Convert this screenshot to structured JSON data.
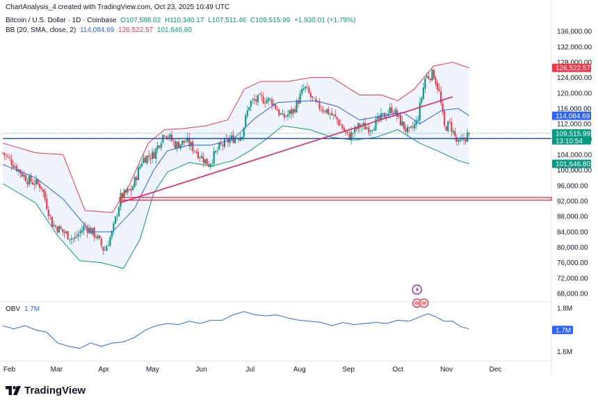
{
  "credit": "ChartAnalysis_4 created with TradingView.com, Oct 23, 2025 10:49 UTC",
  "legend": {
    "symbol": "Bitcoin / U.S. Dollar · 1D · Coinbase",
    "open": "O107,588.02",
    "high": "H110,340.17",
    "low": "L107,511.46",
    "close": "C109,515.99",
    "change": "+1,930.01 (+1.79%)",
    "bb_title": "BB (20, SMA, close, 2)",
    "bb_basis": "114,084.69",
    "bb_upper": "126,522.57",
    "bb_lower": "101,646.80"
  },
  "obv": {
    "title": "OBV",
    "value": "1.7M"
  },
  "branding": {
    "logo_text": "TradingView"
  },
  "colors": {
    "up": "#089981",
    "down": "#f23645",
    "bb_basis": "#2962ff",
    "bb_upper": "#f23645",
    "bb_lower": "#089981",
    "trendline": "#e91e63",
    "hline": "#0d47a1",
    "support": "#f23645",
    "obv": "#2962ff"
  },
  "chart_data": [
    {
      "type": "candlestick",
      "title": "Bitcoin / U.S. Dollar · 1D · Coinbase",
      "x_ticks": [
        "Feb",
        "Mar",
        "Apr",
        "May",
        "Jun",
        "Jul",
        "Aug",
        "Sep",
        "Oct",
        "Nov",
        "Dec"
      ],
      "y_ticks": [
        "136,000.00",
        "132,000.00",
        "128,000.00",
        "124,000.00",
        "120,000.00",
        "116,000.00",
        "112,000.00",
        "108,000.00",
        "104,000.00",
        "100,000.00",
        "96,000.00",
        "92,000.00",
        "88,000.00",
        "84,000.00",
        "80,000.00",
        "76,000.00",
        "72,000.00",
        "68,000.00"
      ],
      "ylim": [
        66000,
        138000
      ],
      "price_labels": [
        {
          "text": "126,522.57",
          "value": 126522.57,
          "color": "#f23645"
        },
        {
          "text": "114,084.69",
          "value": 114084.69,
          "color": "#2962ff"
        },
        {
          "text": "109,515.99",
          "value": 109515.99,
          "color": "#089981",
          "countdown": "13:10:54"
        },
        {
          "text": "101,646.80",
          "value": 101646.8,
          "color": "#089981"
        }
      ],
      "horizontal_line": 108200,
      "support_zone": [
        92200,
        92900
      ],
      "trendline": [
        {
          "x": 0.213,
          "y": 91500
        },
        {
          "x": 0.82,
          "y": 119000
        }
      ],
      "close_series": [
        {
          "t": 0.0,
          "close": 104500
        },
        {
          "t": 0.02,
          "close": 101500
        },
        {
          "t": 0.045,
          "close": 97500
        },
        {
          "t": 0.07,
          "close": 96000
        },
        {
          "t": 0.09,
          "close": 86000
        },
        {
          "t": 0.11,
          "close": 84000
        },
        {
          "t": 0.13,
          "close": 82000
        },
        {
          "t": 0.15,
          "close": 85500
        },
        {
          "t": 0.17,
          "close": 83000
        },
        {
          "t": 0.185,
          "close": 79000
        },
        {
          "t": 0.2,
          "close": 84000
        },
        {
          "t": 0.215,
          "close": 93000
        },
        {
          "t": 0.235,
          "close": 95000
        },
        {
          "t": 0.255,
          "close": 103000
        },
        {
          "t": 0.275,
          "close": 104000
        },
        {
          "t": 0.295,
          "close": 110000
        },
        {
          "t": 0.315,
          "close": 106500
        },
        {
          "t": 0.335,
          "close": 107500
        },
        {
          "t": 0.355,
          "close": 104500
        },
        {
          "t": 0.375,
          "close": 101500
        },
        {
          "t": 0.395,
          "close": 106000
        },
        {
          "t": 0.415,
          "close": 108000
        },
        {
          "t": 0.435,
          "close": 109000
        },
        {
          "t": 0.45,
          "close": 117500
        },
        {
          "t": 0.47,
          "close": 118500
        },
        {
          "t": 0.49,
          "close": 118000
        },
        {
          "t": 0.51,
          "close": 113500
        },
        {
          "t": 0.53,
          "close": 115500
        },
        {
          "t": 0.55,
          "close": 121500
        },
        {
          "t": 0.57,
          "close": 117000
        },
        {
          "t": 0.59,
          "close": 115500
        },
        {
          "t": 0.61,
          "close": 113000
        },
        {
          "t": 0.63,
          "close": 108500
        },
        {
          "t": 0.65,
          "close": 111500
        },
        {
          "t": 0.67,
          "close": 111000
        },
        {
          "t": 0.69,
          "close": 113500
        },
        {
          "t": 0.71,
          "close": 116000
        },
        {
          "t": 0.725,
          "close": 112500
        },
        {
          "t": 0.74,
          "close": 109500
        },
        {
          "t": 0.755,
          "close": 112500
        },
        {
          "t": 0.77,
          "close": 124000
        },
        {
          "t": 0.785,
          "close": 125000
        },
        {
          "t": 0.795,
          "close": 120500
        },
        {
          "t": 0.805,
          "close": 111000
        },
        {
          "t": 0.815,
          "close": 112000
        },
        {
          "t": 0.83,
          "close": 106500
        },
        {
          "t": 0.84,
          "close": 108000
        },
        {
          "t": 0.85,
          "close": 109516
        }
      ],
      "bb_upper": [
        {
          "t": 0.0,
          "v": 107000
        },
        {
          "t": 0.06,
          "v": 104500
        },
        {
          "t": 0.11,
          "v": 104000
        },
        {
          "t": 0.15,
          "v": 89500
        },
        {
          "t": 0.2,
          "v": 89000
        },
        {
          "t": 0.23,
          "v": 96000
        },
        {
          "t": 0.265,
          "v": 107000
        },
        {
          "t": 0.295,
          "v": 110500
        },
        {
          "t": 0.33,
          "v": 110800
        },
        {
          "t": 0.37,
          "v": 111500
        },
        {
          "t": 0.41,
          "v": 113000
        },
        {
          "t": 0.44,
          "v": 121000
        },
        {
          "t": 0.47,
          "v": 123000
        },
        {
          "t": 0.52,
          "v": 123000
        },
        {
          "t": 0.56,
          "v": 124000
        },
        {
          "t": 0.6,
          "v": 124000
        },
        {
          "t": 0.65,
          "v": 119500
        },
        {
          "t": 0.69,
          "v": 119500
        },
        {
          "t": 0.72,
          "v": 118000
        },
        {
          "t": 0.75,
          "v": 121000
        },
        {
          "t": 0.785,
          "v": 127000
        },
        {
          "t": 0.82,
          "v": 128000
        },
        {
          "t": 0.85,
          "v": 126522
        }
      ],
      "bb_basis": [
        {
          "t": 0.0,
          "v": 101500
        },
        {
          "t": 0.06,
          "v": 98000
        },
        {
          "t": 0.11,
          "v": 92500
        },
        {
          "t": 0.16,
          "v": 84000
        },
        {
          "t": 0.2,
          "v": 84000
        },
        {
          "t": 0.24,
          "v": 90000
        },
        {
          "t": 0.275,
          "v": 100000
        },
        {
          "t": 0.3,
          "v": 105000
        },
        {
          "t": 0.34,
          "v": 106500
        },
        {
          "t": 0.38,
          "v": 106500
        },
        {
          "t": 0.42,
          "v": 108000
        },
        {
          "t": 0.46,
          "v": 113500
        },
        {
          "t": 0.5,
          "v": 117500
        },
        {
          "t": 0.53,
          "v": 117800
        },
        {
          "t": 0.57,
          "v": 118000
        },
        {
          "t": 0.61,
          "v": 116500
        },
        {
          "t": 0.65,
          "v": 113000
        },
        {
          "t": 0.69,
          "v": 114000
        },
        {
          "t": 0.73,
          "v": 115000
        },
        {
          "t": 0.76,
          "v": 112000
        },
        {
          "t": 0.8,
          "v": 115500
        },
        {
          "t": 0.83,
          "v": 116000
        },
        {
          "t": 0.85,
          "v": 114084
        }
      ],
      "bb_lower": [
        {
          "t": 0.0,
          "v": 96500
        },
        {
          "t": 0.06,
          "v": 91500
        },
        {
          "t": 0.1,
          "v": 83000
        },
        {
          "t": 0.14,
          "v": 76500
        },
        {
          "t": 0.18,
          "v": 76000
        },
        {
          "t": 0.22,
          "v": 74500
        },
        {
          "t": 0.25,
          "v": 82000
        },
        {
          "t": 0.275,
          "v": 94000
        },
        {
          "t": 0.3,
          "v": 99500
        },
        {
          "t": 0.34,
          "v": 102000
        },
        {
          "t": 0.38,
          "v": 101000
        },
        {
          "t": 0.42,
          "v": 102500
        },
        {
          "t": 0.45,
          "v": 105000
        },
        {
          "t": 0.48,
          "v": 108000
        },
        {
          "t": 0.51,
          "v": 111500
        },
        {
          "t": 0.56,
          "v": 110500
        },
        {
          "t": 0.6,
          "v": 108500
        },
        {
          "t": 0.64,
          "v": 107800
        },
        {
          "t": 0.68,
          "v": 108500
        },
        {
          "t": 0.72,
          "v": 110500
        },
        {
          "t": 0.76,
          "v": 107000
        },
        {
          "t": 0.8,
          "v": 104500
        },
        {
          "t": 0.83,
          "v": 102500
        },
        {
          "t": 0.85,
          "v": 101647
        }
      ]
    },
    {
      "type": "line",
      "title": "OBV",
      "y_ticks": [
        "1.8M",
        "1.6M"
      ],
      "ylim": [
        1.56,
        1.82
      ],
      "value_label": "1.7M",
      "series": [
        {
          "t": 0.0,
          "v": 1.72
        },
        {
          "t": 0.02,
          "v": 1.705
        },
        {
          "t": 0.04,
          "v": 1.72
        },
        {
          "t": 0.06,
          "v": 1.7
        },
        {
          "t": 0.08,
          "v": 1.69
        },
        {
          "t": 0.1,
          "v": 1.64
        },
        {
          "t": 0.12,
          "v": 1.625
        },
        {
          "t": 0.14,
          "v": 1.615
        },
        {
          "t": 0.16,
          "v": 1.64
        },
        {
          "t": 0.18,
          "v": 1.625
        },
        {
          "t": 0.2,
          "v": 1.64
        },
        {
          "t": 0.22,
          "v": 1.645
        },
        {
          "t": 0.24,
          "v": 1.665
        },
        {
          "t": 0.26,
          "v": 1.7
        },
        {
          "t": 0.28,
          "v": 1.72
        },
        {
          "t": 0.3,
          "v": 1.73
        },
        {
          "t": 0.32,
          "v": 1.725
        },
        {
          "t": 0.34,
          "v": 1.74
        },
        {
          "t": 0.36,
          "v": 1.73
        },
        {
          "t": 0.38,
          "v": 1.745
        },
        {
          "t": 0.4,
          "v": 1.745
        },
        {
          "t": 0.42,
          "v": 1.77
        },
        {
          "t": 0.44,
          "v": 1.785
        },
        {
          "t": 0.46,
          "v": 1.77
        },
        {
          "t": 0.48,
          "v": 1.765
        },
        {
          "t": 0.5,
          "v": 1.77
        },
        {
          "t": 0.52,
          "v": 1.755
        },
        {
          "t": 0.54,
          "v": 1.745
        },
        {
          "t": 0.56,
          "v": 1.74
        },
        {
          "t": 0.58,
          "v": 1.735
        },
        {
          "t": 0.6,
          "v": 1.72
        },
        {
          "t": 0.62,
          "v": 1.735
        },
        {
          "t": 0.64,
          "v": 1.725
        },
        {
          "t": 0.66,
          "v": 1.73
        },
        {
          "t": 0.68,
          "v": 1.735
        },
        {
          "t": 0.7,
          "v": 1.73
        },
        {
          "t": 0.72,
          "v": 1.745
        },
        {
          "t": 0.74,
          "v": 1.74
        },
        {
          "t": 0.76,
          "v": 1.76
        },
        {
          "t": 0.775,
          "v": 1.775
        },
        {
          "t": 0.79,
          "v": 1.76
        },
        {
          "t": 0.805,
          "v": 1.74
        },
        {
          "t": 0.82,
          "v": 1.74
        },
        {
          "t": 0.835,
          "v": 1.715
        },
        {
          "t": 0.85,
          "v": 1.705
        }
      ]
    }
  ]
}
